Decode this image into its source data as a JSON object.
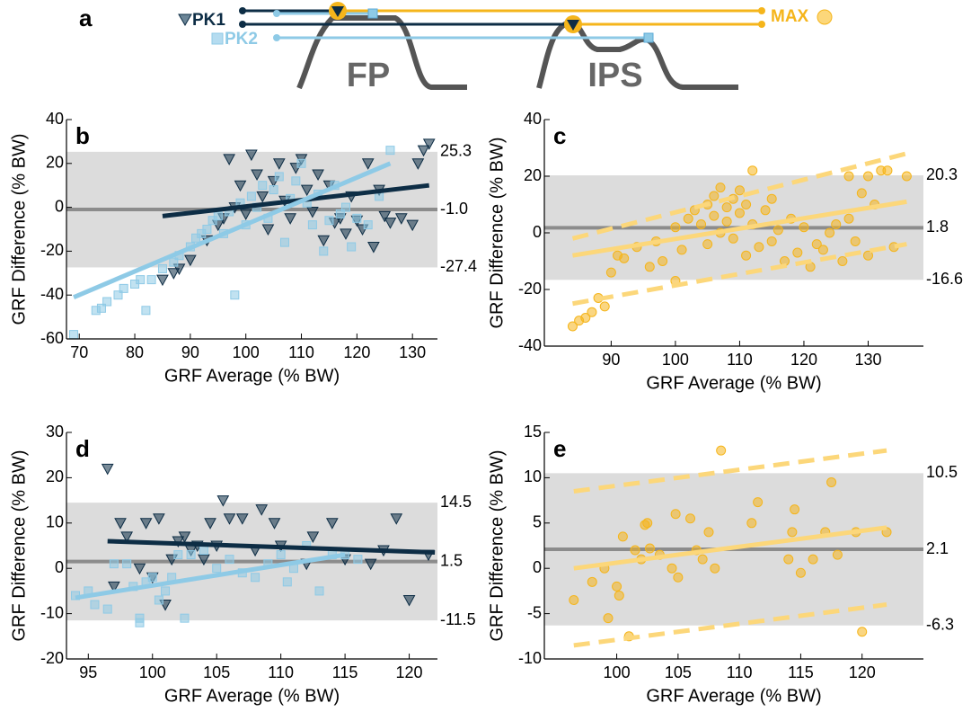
{
  "diagram": {
    "label": "a",
    "legend": [
      "PK1",
      "PK2",
      "MAX"
    ],
    "phases": [
      "FP",
      "IPS"
    ]
  },
  "chart_data": [
    {
      "type": "scatter",
      "label": "b",
      "xlabel": "GRF Average (% BW)",
      "ylabel": "GRF Difference (% BW)",
      "xlim": [
        67.7,
        134.5
      ],
      "ylim": [
        -60,
        40
      ],
      "xticks": [
        70,
        80,
        90,
        100,
        110,
        120,
        130
      ],
      "yticks": [
        -60,
        -40,
        -20,
        0,
        20,
        40
      ],
      "band": {
        "upper": 25.3,
        "mean": {
          "value": -1,
          "label": "-1.0"
        },
        "lower": -27.4
      },
      "series": [
        {
          "color": "#0d2d45",
          "marker": "triangle",
          "x": [
            85,
            87,
            88,
            90,
            93,
            95,
            96,
            97,
            98,
            99,
            100,
            101,
            102,
            103,
            104,
            105,
            106,
            107,
            108,
            109,
            110,
            111,
            112,
            113,
            114,
            115,
            116,
            117,
            118,
            119,
            120,
            121,
            122,
            123,
            124,
            125,
            126,
            128,
            130,
            131,
            132,
            133
          ],
          "y": [
            -33,
            -30,
            -28,
            -24,
            -15,
            -8,
            -5,
            22,
            0,
            10,
            -3,
            24,
            15,
            5,
            -10,
            12,
            20,
            3,
            -5,
            18,
            22,
            8,
            -2,
            15,
            -15,
            10,
            -7,
            -5,
            -12,
            5,
            -6,
            -10,
            20,
            -18,
            8,
            -4,
            -7,
            -5,
            -8,
            20,
            26,
            29
          ]
        },
        {
          "color": "#8ecae6",
          "marker": "square",
          "x": [
            69,
            73,
            74,
            75,
            77,
            78,
            80,
            81,
            82,
            83,
            85,
            87,
            88,
            90,
            91,
            92,
            93,
            94,
            95,
            96,
            97,
            98,
            99,
            100,
            101,
            102,
            103,
            104,
            105,
            106,
            107,
            108,
            109,
            110,
            111,
            112,
            113,
            114,
            115,
            116,
            117,
            118,
            119,
            120,
            122,
            124,
            126
          ],
          "y": [
            -58,
            -47,
            -46,
            -43,
            -40,
            -37,
            -35,
            -33,
            -47,
            -33,
            -28,
            -25,
            -22,
            -18,
            -14,
            -12,
            -10,
            -6,
            -4,
            -12,
            -2,
            -40,
            2,
            -8,
            5,
            0,
            10,
            -5,
            8,
            14,
            -16,
            4,
            12,
            20,
            2,
            -8,
            6,
            -20,
            -6,
            10,
            -3,
            0,
            -18,
            -5,
            -8,
            5,
            26
          ]
        }
      ],
      "fits": [
        {
          "color": "#0d2d45",
          "dashed": false,
          "x": [
            85,
            133
          ],
          "y": [
            -4,
            10
          ]
        },
        {
          "color": "#8ecae6",
          "dashed": false,
          "x": [
            69,
            126
          ],
          "y": [
            -41,
            20
          ]
        }
      ]
    },
    {
      "type": "scatter",
      "label": "c",
      "xlabel": "GRF Average (% BW)",
      "ylabel": "GRF Difference (% BW)",
      "xlim": [
        79.6,
        138.6
      ],
      "ylim": [
        -40,
        40
      ],
      "xticks": [
        90,
        100,
        110,
        120,
        130
      ],
      "yticks": [
        -40,
        -20,
        0,
        20,
        40
      ],
      "band": {
        "upper": 20.3,
        "mean": 1.8,
        "lower": -16.6
      },
      "series": [
        {
          "color": "#f5b51b",
          "marker": "circle",
          "x": [
            84,
            85,
            86,
            87,
            88,
            89,
            90,
            91,
            92,
            94,
            96,
            97,
            98,
            100,
            100,
            101,
            102,
            103,
            104,
            105,
            105,
            106,
            106,
            107,
            107,
            108,
            108,
            109,
            109,
            110,
            110,
            111,
            111,
            112,
            112,
            113,
            114,
            115,
            115,
            116,
            117,
            118,
            119,
            120,
            121,
            122,
            123,
            124,
            125,
            126,
            127,
            127,
            128,
            129,
            130,
            130,
            131,
            132,
            133,
            134,
            136
          ],
          "y": [
            -33,
            -31,
            -30,
            -28,
            -23,
            -26,
            -14,
            -8,
            -9,
            -5,
            -12,
            -3,
            -10,
            -17,
            2,
            -6,
            5,
            8,
            3,
            -4,
            10,
            6,
            13,
            0,
            16,
            9,
            4,
            12,
            -2,
            15,
            7,
            -8,
            10,
            22,
            3,
            -5,
            8,
            12,
            -3,
            1,
            -10,
            5,
            -7,
            2,
            -12,
            -4,
            -6,
            0,
            3,
            -10,
            5,
            20,
            -3,
            14,
            -8,
            20,
            10,
            22,
            22,
            -5,
            20
          ]
        }
      ],
      "fits": [
        {
          "color": "#fcd77a",
          "dashed": false,
          "x": [
            84,
            136
          ],
          "y": [
            -8,
            11
          ]
        },
        {
          "color": "#fcd77a",
          "dashed": true,
          "x": [
            84,
            136
          ],
          "y": [
            -2,
            28
          ]
        },
        {
          "color": "#fcd77a",
          "dashed": true,
          "x": [
            84,
            136
          ],
          "y": [
            -25,
            -4
          ]
        }
      ]
    },
    {
      "type": "scatter",
      "label": "d",
      "xlabel": "GRF Average (% BW)",
      "ylabel": "GRF Difference (% BW)",
      "xlim": [
        93.3,
        122.2
      ],
      "ylim": [
        -20,
        30
      ],
      "xticks": [
        95,
        100,
        105,
        110,
        115,
        120
      ],
      "yticks": [
        -20,
        -10,
        0,
        10,
        20,
        30
      ],
      "band": {
        "upper": 14.5,
        "mean": 1.5,
        "lower": -11.5
      },
      "series": [
        {
          "color": "#0d2d45",
          "marker": "triangle",
          "x": [
            96.5,
            97,
            97.5,
            98,
            99,
            99.5,
            100,
            100.5,
            101,
            101.5,
            102,
            102.5,
            103,
            103.5,
            104,
            104.5,
            105,
            105.5,
            106,
            107,
            108,
            108.5,
            109.5,
            110,
            112,
            112.5,
            114,
            115,
            117,
            118,
            119,
            120,
            121.5
          ],
          "y": [
            22,
            -4,
            10,
            7,
            0,
            10,
            -2,
            11,
            -8,
            2,
            6,
            7,
            4,
            5,
            2,
            10,
            5,
            15,
            11,
            11,
            4,
            13,
            10,
            5,
            1,
            7,
            10,
            2,
            1,
            4,
            11,
            -7,
            3
          ]
        },
        {
          "color": "#8ecae6",
          "marker": "square",
          "x": [
            94,
            95,
            95.5,
            96.5,
            97,
            98,
            98.5,
            99,
            99,
            99.5,
            100,
            100.5,
            101,
            101.5,
            102,
            102.5,
            103,
            104,
            105,
            106,
            107,
            108,
            109,
            110,
            110.5,
            111,
            112,
            113,
            114,
            115,
            116
          ],
          "y": [
            -6,
            -5,
            -8,
            -9,
            1,
            1,
            -4,
            -11,
            -12,
            -3,
            -2,
            -7,
            -5,
            -2,
            3,
            -11,
            3,
            4,
            0,
            2,
            -1,
            -2,
            1,
            3,
            -3,
            0,
            5,
            -5,
            3,
            3,
            2
          ]
        }
      ],
      "fits": [
        {
          "color": "#0d2d45",
          "dashed": false,
          "x": [
            96.5,
            122
          ],
          "y": [
            6,
            3.5
          ]
        },
        {
          "color": "#8ecae6",
          "dashed": false,
          "x": [
            94,
            115
          ],
          "y": [
            -6.5,
            3
          ]
        }
      ]
    },
    {
      "type": "scatter",
      "label": "e",
      "xlabel": "GRF Average (% BW)",
      "ylabel": "GRF Difference (% BW)",
      "xlim": [
        94.1,
        125
      ],
      "ylim": [
        -10,
        15
      ],
      "xticks": [
        100,
        105,
        110,
        115,
        120
      ],
      "yticks": [
        -10,
        -5,
        0,
        5,
        10,
        15
      ],
      "band": {
        "upper": 10.5,
        "mean": 2.1,
        "lower": -6.3
      },
      "series": [
        {
          "color": "#f5b51b",
          "marker": "circle",
          "x": [
            96.5,
            98,
            99,
            99.3,
            100,
            100.2,
            100.5,
            101,
            101.5,
            102,
            102.3,
            102.5,
            102.7,
            103.5,
            104.5,
            104.8,
            105,
            106,
            106.5,
            107,
            107.5,
            108,
            108.5,
            111,
            111.5,
            114,
            114.3,
            114.5,
            115,
            116,
            117,
            117.5,
            118,
            119.5,
            120,
            122
          ],
          "y": [
            -3.5,
            -1.5,
            0,
            -5.5,
            -2,
            -3,
            3.5,
            -7.5,
            2,
            1,
            4.8,
            5,
            2.2,
            1.5,
            0,
            6,
            -1,
            5.5,
            2,
            1,
            4,
            0,
            13,
            5,
            7.3,
            1,
            4,
            6.5,
            -0.5,
            1,
            4,
            9.5,
            1.5,
            4,
            -7,
            4
          ]
        }
      ],
      "fits": [
        {
          "color": "#fcd77a",
          "dashed": false,
          "x": [
            96.5,
            122
          ],
          "y": [
            0,
            4.5
          ]
        },
        {
          "color": "#fcd77a",
          "dashed": true,
          "x": [
            96.5,
            122
          ],
          "y": [
            8.5,
            13
          ]
        },
        {
          "color": "#fcd77a",
          "dashed": true,
          "x": [
            96.5,
            122
          ],
          "y": [
            -8.5,
            -4
          ]
        }
      ]
    }
  ]
}
